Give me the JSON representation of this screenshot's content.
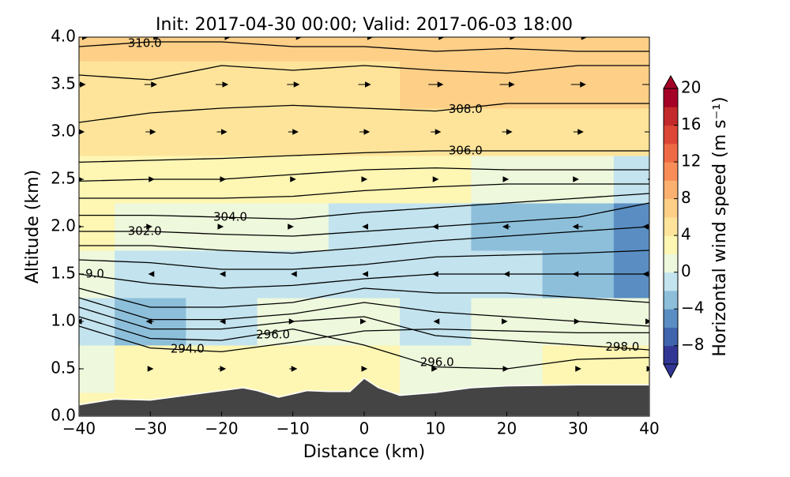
{
  "chart_data": {
    "type": "contourf",
    "title": "Init: 2017-04-30 00:00; Valid: 2017-06-03 18:00",
    "x_label": "Distance (km)",
    "y_label": "Altitude (km)",
    "xlim": [
      -40,
      40
    ],
    "xticks": [
      {
        "value": -40,
        "label": "−40"
      },
      {
        "value": -30,
        "label": "−30"
      },
      {
        "value": -20,
        "label": "−20"
      },
      {
        "value": -10,
        "label": "−10"
      },
      0,
      10,
      20,
      30,
      40
    ],
    "ylim": [
      0,
      4
    ],
    "yticks": [
      {
        "value": 0,
        "label": "0.0"
      },
      0.5,
      {
        "value": 1,
        "label": "1.0"
      },
      1.5,
      {
        "value": 2,
        "label": "2.0"
      },
      2.5,
      {
        "value": 3,
        "label": "3.0"
      },
      3.5,
      {
        "value": 4,
        "label": "4.0"
      }
    ],
    "field": {
      "x": [
        -40,
        -30,
        -20,
        -10,
        0,
        10,
        20,
        30,
        40
      ],
      "y": [
        0,
        0.5,
        1,
        1.5,
        2,
        2.5,
        3,
        3.5,
        4
      ],
      "z": [
        [
          2,
          2,
          2,
          2,
          1,
          1,
          1,
          1,
          1
        ],
        [
          1,
          2,
          3,
          3,
          2,
          1,
          1,
          2,
          2
        ],
        [
          -2,
          -3,
          -1,
          1,
          1,
          -1,
          0,
          1,
          1
        ],
        [
          1,
          -1,
          -1,
          -1,
          -1,
          -2,
          -2,
          -4,
          -5
        ],
        [
          2,
          1,
          1,
          0,
          -1,
          -2,
          -3,
          -4,
          -5
        ],
        [
          3,
          3,
          3,
          2,
          2,
          2,
          1,
          0,
          -1
        ],
        [
          4,
          4,
          4,
          4,
          4,
          4,
          4,
          4,
          4
        ],
        [
          5,
          5,
          5,
          5,
          5,
          6,
          6,
          6,
          6
        ],
        [
          7,
          7,
          7,
          7,
          7,
          7,
          7,
          7,
          7
        ]
      ]
    },
    "contours_x": [
      -40,
      -30,
      -20,
      -10,
      0,
      10,
      20,
      30,
      40
    ],
    "contours": [
      {
        "y": [
          0.95,
          0.72,
          0.68,
          0.78,
          0.9,
          0.92,
          0.9,
          0.88,
          0.88
        ],
        "labels": [
          "294.0"
        ]
      },
      {
        "y": [
          1.05,
          0.82,
          0.8,
          0.92,
          0.75,
          0.52,
          0.5,
          0.6,
          0.62
        ],
        "labels": [
          "296.0",
          "296.0"
        ]
      },
      {
        "y": [
          1.15,
          0.92,
          0.92,
          1.0,
          1.05,
          0.85,
          0.8,
          0.75,
          0.7
        ],
        "labels": [
          "298.0"
        ]
      },
      {
        "y": [
          1.25,
          1.02,
          1.02,
          1.08,
          1.2,
          1.1,
          1.05,
          1.0,
          0.95
        ]
      },
      {
        "y": [
          1.35,
          1.15,
          1.15,
          1.2,
          1.35,
          1.3,
          1.3,
          1.25,
          1.2
        ]
      },
      {
        "y": [
          1.5,
          1.4,
          1.35,
          1.38,
          1.45,
          1.5,
          1.5,
          1.5,
          1.5
        ],
        "labels": [
          "9.0"
        ]
      },
      {
        "y": [
          1.65,
          1.62,
          1.55,
          1.55,
          1.6,
          1.68,
          1.7,
          1.72,
          1.75
        ]
      },
      {
        "y": [
          1.8,
          1.8,
          1.75,
          1.72,
          1.78,
          1.85,
          1.9,
          1.95,
          2.0
        ]
      },
      {
        "y": [
          1.95,
          1.95,
          1.92,
          1.9,
          1.95,
          2.0,
          2.05,
          2.1,
          2.25
        ],
        "labels": [
          "302.0"
        ]
      },
      {
        "y": [
          2.12,
          2.12,
          2.1,
          2.08,
          2.15,
          2.2,
          2.25,
          2.3,
          2.35
        ],
        "labels": [
          "304.0"
        ]
      },
      {
        "y": [
          2.3,
          2.3,
          2.3,
          2.32,
          2.38,
          2.42,
          2.45,
          2.45,
          2.45
        ]
      },
      {
        "y": [
          2.48,
          2.5,
          2.5,
          2.55,
          2.6,
          2.62,
          2.6,
          2.6,
          2.6
        ]
      },
      {
        "y": [
          2.68,
          2.7,
          2.72,
          2.75,
          2.78,
          2.8,
          2.8,
          2.8,
          2.8
        ],
        "labels": [
          "306.0"
        ]
      },
      {
        "y": [
          3.1,
          3.2,
          3.25,
          3.28,
          3.25,
          3.22,
          3.3,
          3.3,
          3.3
        ],
        "labels": [
          "308.0"
        ]
      },
      {
        "y": [
          3.6,
          3.55,
          3.7,
          3.65,
          3.7,
          3.65,
          3.62,
          3.7,
          3.7
        ]
      },
      {
        "y": [
          3.9,
          3.95,
          3.95,
          3.9,
          3.9,
          3.85,
          3.88,
          3.85,
          3.85
        ],
        "labels": [
          "310.0"
        ]
      }
    ],
    "terrain": {
      "x": [
        -40,
        -35,
        -30,
        -25,
        -20,
        -17,
        -15,
        -12,
        -8,
        -5,
        -2,
        0,
        2,
        5,
        10,
        15,
        20,
        30,
        40
      ],
      "y": [
        0.12,
        0.18,
        0.17,
        0.22,
        0.27,
        0.3,
        0.27,
        0.2,
        0.27,
        0.26,
        0.26,
        0.4,
        0.3,
        0.22,
        0.25,
        0.3,
        0.32,
        0.33,
        0.33
      ],
      "color": "#444444"
    },
    "colorbar": {
      "label": "Horizontal wind speed (m s⁻¹)",
      "lim": [
        -10,
        20
      ],
      "ticks": [
        {
          "value": -8,
          "label": "−8"
        },
        {
          "value": -4,
          "label": "−4"
        },
        0,
        4,
        8,
        12,
        16,
        20
      ],
      "colors": [
        "#313695",
        "#4064ad",
        "#5a8ec2",
        "#8dbfdb",
        "#c3e3ee",
        "#eef8dc",
        "#fef6b3",
        "#fee49a",
        "#fdcf87",
        "#fbb070",
        "#f88d58",
        "#ee6a45",
        "#dc4635",
        "#c3292a",
        "#a50026"
      ]
    }
  }
}
